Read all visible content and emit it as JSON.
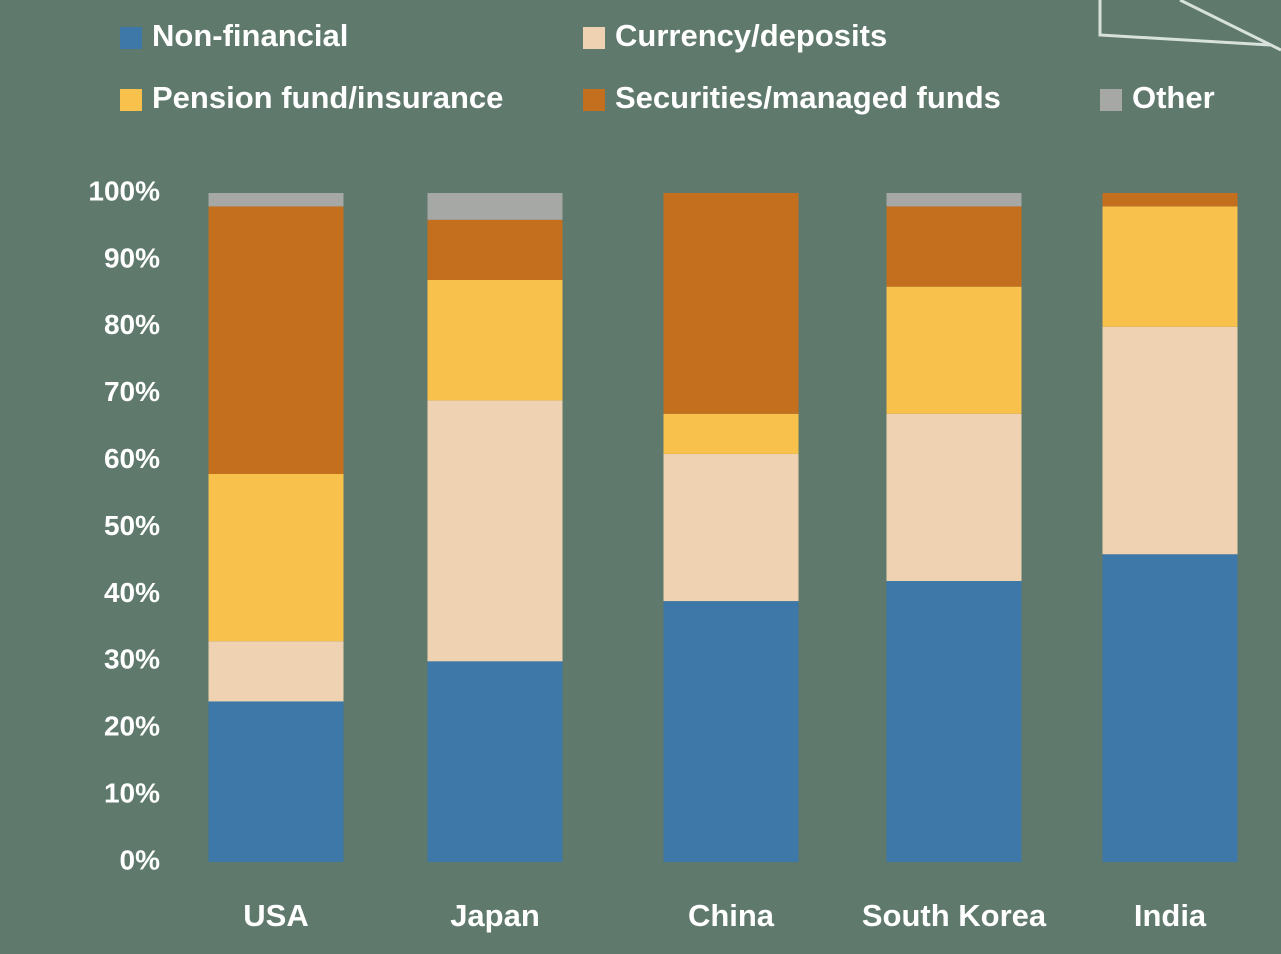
{
  "chart_data": {
    "type": "stacked_bar",
    "categories": [
      "USA",
      "Japan",
      "China",
      "South Korea",
      "India"
    ],
    "series": [
      {
        "name": "Non-financial",
        "color": "#3d78a8",
        "values": [
          24,
          30,
          39,
          42,
          46
        ]
      },
      {
        "name": "Currency/deposits",
        "color": "#efd2b1",
        "values": [
          9,
          39,
          22,
          25,
          34
        ]
      },
      {
        "name": "Pension fund/insurance",
        "color": "#f8c14b",
        "values": [
          25,
          18,
          6,
          19,
          18
        ]
      },
      {
        "name": "Securities/managed funds",
        "color": "#c46f1d",
        "values": [
          40,
          9,
          33,
          12,
          2
        ]
      },
      {
        "name": "Other",
        "color": "#a6a8a5",
        "values": [
          2,
          4,
          0,
          2,
          0
        ]
      }
    ],
    "ylim": [
      0,
      100
    ],
    "yticks": [
      {
        "value": 0,
        "label": "0%"
      },
      {
        "value": 10,
        "label": "10%"
      },
      {
        "value": 20,
        "label": "20%"
      },
      {
        "value": 30,
        "label": "30%"
      },
      {
        "value": 40,
        "label": "40%"
      },
      {
        "value": 50,
        "label": "50%"
      },
      {
        "value": 60,
        "label": "60%"
      },
      {
        "value": 70,
        "label": "70%"
      },
      {
        "value": 80,
        "label": "80%"
      },
      {
        "value": 90,
        "label": "90%"
      },
      {
        "value": 100,
        "label": "100%"
      }
    ]
  }
}
